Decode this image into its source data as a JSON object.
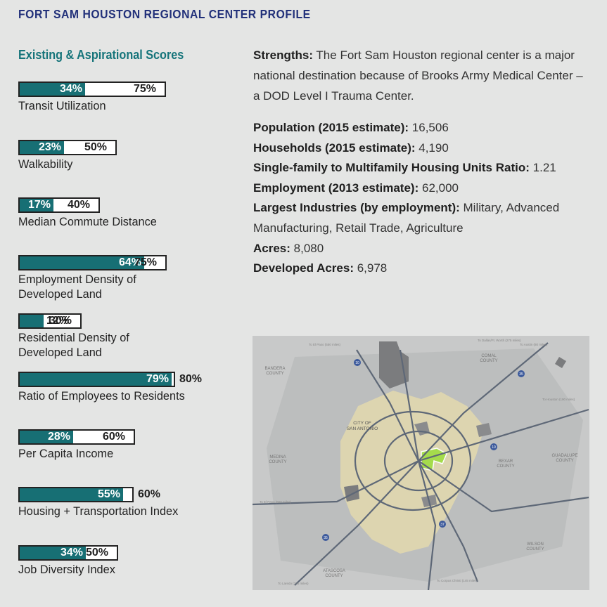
{
  "page_title": "FORT SAM HOUSTON REGIONAL CENTER PROFILE",
  "scores_heading": "Existing & Aspirational Scores",
  "colors": {
    "title": "#22317a",
    "accent": "#15747a",
    "bar_fill": "#176f74"
  },
  "scores": [
    {
      "label": "Transit Utilization",
      "current": "34%",
      "aspirational": "75%",
      "current_value": 34,
      "aspirational_value": 75
    },
    {
      "label": "Walkability",
      "current": "23%",
      "aspirational": "50%",
      "current_value": 23,
      "aspirational_value": 50
    },
    {
      "label": "Median Commute Distance",
      "current": "17%",
      "aspirational": "40%",
      "current_value": 17,
      "aspirational_value": 40
    },
    {
      "label": "Employment Density of Developed Land",
      "current": "64%",
      "aspirational": "75%",
      "current_value": 64,
      "aspirational_value": 75
    },
    {
      "label": "Residential Density of Developed Land",
      "current": "12%",
      "aspirational": "30%",
      "current_value": 12,
      "aspirational_value": 30
    },
    {
      "label": "Ratio of Employees to Residents",
      "current": "79%",
      "aspirational": "80%",
      "current_value": 79,
      "aspirational_value": 80
    },
    {
      "label": "Per Capita Income",
      "current": "28%",
      "aspirational": "60%",
      "current_value": 28,
      "aspirational_value": 60
    },
    {
      "label": "Housing + Transportation Index",
      "current": "55%",
      "aspirational": "60%",
      "current_value": 55,
      "aspirational_value": 60
    },
    {
      "label": "Job Diversity Index",
      "current": "34%",
      "aspirational": "50%",
      "current_value": 34,
      "aspirational_value": 50
    }
  ],
  "strengths": {
    "label": "Strengths:",
    "text": "The Fort Sam Houston regional center is a major national destination because of Brooks Army Medical Center – a DOD Level I Trauma Center."
  },
  "stats": [
    {
      "label": "Population (2015 estimate):",
      "value": "16,506"
    },
    {
      "label": "Households (2015 estimate):",
      "value": "4,190"
    },
    {
      "label": "Single-family to Multifamily Housing Units Ratio:",
      "value": "1.21"
    },
    {
      "label": "Employment (2013 estimate):",
      "value": "62,000"
    },
    {
      "label": "Largest Industries (by employment):",
      "value": "Military, Advanced Manufacturing, Retail Trade, Agriculture"
    },
    {
      "label": "Acres:",
      "value": "8,080"
    },
    {
      "label": "Developed Acres:",
      "value": "6,978"
    }
  ],
  "map": {
    "counties": [
      "BANDERA COUNTY",
      "COMAL COUNTY",
      "MEDINA COUNTY",
      "BEXAR COUNTY",
      "GUADALUPE COUNTY",
      "WILSON COUNTY",
      "ATASCOSA COUNTY"
    ],
    "city_label": "CITY OF SAN ANTONIO",
    "city_line1": "CITY OF",
    "city_line2": "SAN ANTONIO",
    "bandera_1": "BANDERA",
    "bandera_2": "COUNTY",
    "comal_1": "COMAL",
    "comal_2": "COUNTY",
    "medina_1": "MEDINA",
    "medina_2": "COUNTY",
    "bexar_1": "BEXAR",
    "bexar_2": "COUNTY",
    "guadalupe_1": "GUADALUPE",
    "guadalupe_2": "COUNTY",
    "wilson_1": "WILSON",
    "wilson_2": "COUNTY",
    "atascosa_1": "ATASCOSA",
    "atascosa_2": "COUNTY",
    "highway_shields": [
      "10",
      "35",
      "37",
      "410",
      "1604",
      "281",
      "90"
    ],
    "shield_10a": "10",
    "shield_10b": "10",
    "shield_35a": "35",
    "shield_35b": "35",
    "shield_37": "37",
    "road_el_paso": "To El Paso (550 miles)",
    "road_dallas": "To Dallas/Ft. Worth (275 miles)",
    "road_austin": "To Austin (80 miles)",
    "road_houston": "To Houston (190 miles)",
    "road_el_paso_2": "To El Paso (550 miles)",
    "road_laredo": "To Laredo (155 miles)",
    "road_corpus": "To Corpus Christi (145 miles)",
    "colors": {
      "background": "#c8c9c9",
      "city": "#ddd5b0",
      "highlight": "#a5dc4c",
      "roads": "#5e6877",
      "military": "#7b7c7e"
    }
  }
}
